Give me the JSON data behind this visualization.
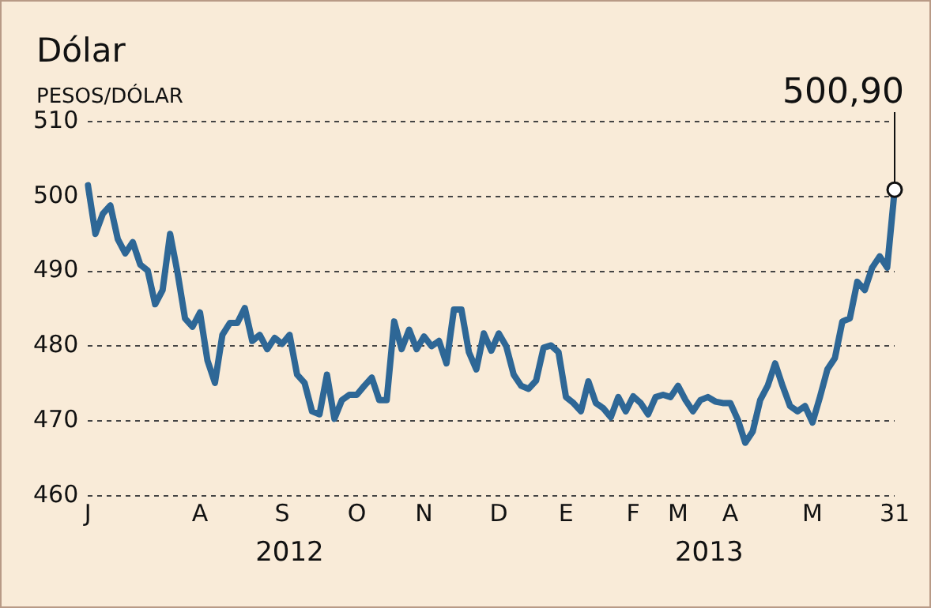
{
  "chart_data": {
    "type": "line",
    "title": "Dólar",
    "ylabel": "PESOS/DÓLAR",
    "categories": [
      "J",
      null,
      null,
      null,
      null,
      null,
      null,
      null,
      null,
      null,
      null,
      null,
      null,
      null,
      null,
      "A",
      null,
      null,
      null,
      null,
      null,
      null,
      null,
      null,
      null,
      null,
      "S",
      null,
      null,
      null,
      null,
      null,
      null,
      null,
      null,
      null,
      "O",
      null,
      null,
      null,
      null,
      null,
      null,
      null,
      null,
      "N",
      null,
      null,
      null,
      null,
      null,
      null,
      null,
      null,
      null,
      "D",
      null,
      null,
      null,
      null,
      null,
      null,
      null,
      null,
      "E",
      null,
      null,
      null,
      null,
      null,
      null,
      null,
      null,
      "F",
      null,
      null,
      null,
      null,
      null,
      "M",
      null,
      null,
      null,
      null,
      null,
      null,
      "A",
      null,
      null,
      null,
      null,
      null,
      null,
      null,
      null,
      null,
      null,
      "M",
      null,
      null,
      null,
      null,
      null,
      null,
      null,
      null,
      null,
      null,
      "31"
    ],
    "series": [
      {
        "color": "#2e6796",
        "values": [
          501.5,
          495,
          497.7,
          498.8,
          494.3,
          492.4,
          493.9,
          490.9,
          490.1,
          485.6,
          487.5,
          495,
          489.8,
          483.7,
          482.6,
          484.5,
          478.1,
          475.1,
          481.5,
          483.1,
          483.1,
          485.1,
          480.7,
          481.5,
          479.6,
          481.1,
          480.3,
          481.5,
          476.2,
          475.1,
          471.3,
          470.9,
          476.2,
          470.3,
          472.8,
          473.5,
          473.5,
          474.7,
          475.8,
          472.8,
          472.8,
          483.3,
          479.6,
          482.2,
          479.6,
          481.3,
          480,
          480.7,
          477.7,
          484.9,
          484.9,
          479.2,
          476.9,
          481.7,
          479.4,
          481.7,
          480,
          476.2,
          474.7,
          474.3,
          475.4,
          479.8,
          480.1,
          479.2,
          473.2,
          472.4,
          471.3,
          475.3,
          472.4,
          471.7,
          470.5,
          473.2,
          471.3,
          473.3,
          472.4,
          470.9,
          473.2,
          473.5,
          473.2,
          474.7,
          472.8,
          471.3,
          472.8,
          473.2,
          472.6,
          472.4,
          472.4,
          470.2,
          467.1,
          468.6,
          472.8,
          474.7,
          477.7,
          474.7,
          472,
          471.3,
          472,
          469.8,
          473.2,
          476.9,
          478.4,
          483.3,
          483.7,
          488.6,
          487.5,
          490.5,
          492,
          490.5,
          500.9
        ]
      }
    ],
    "ylim": [
      460,
      510
    ],
    "yticks": [
      460,
      470,
      480,
      490,
      500,
      510
    ],
    "grid": "y",
    "legend": false,
    "marker": "none",
    "line_style": "solid",
    "annotations": [
      "2012",
      "2013",
      {
        "text": "500,90",
        "x": "31",
        "y": 500.9
      }
    ]
  }
}
